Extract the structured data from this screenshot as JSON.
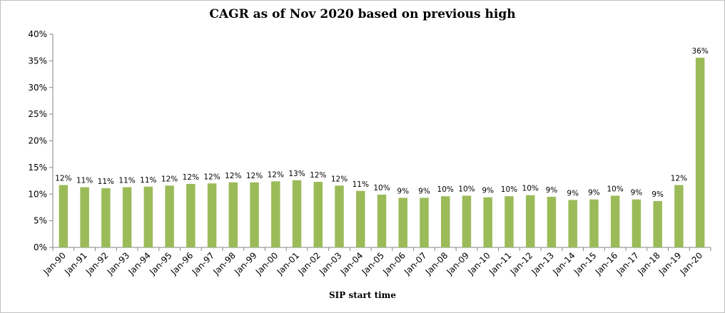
{
  "chart_data": {
    "type": "bar",
    "title": "CAGR as of Nov 2020 based on previous high",
    "xlabel": "SIP start time",
    "ylabel": "",
    "ylim": [
      0,
      40
    ],
    "y_ticks": [
      "0%",
      "5%",
      "10%",
      "15%",
      "20%",
      "25%",
      "30%",
      "35%",
      "40%"
    ],
    "categories": [
      "Jan-90",
      "Jan-91",
      "Jan-92",
      "Jan-93",
      "Jan-94",
      "Jan-95",
      "Jan-96",
      "Jan-97",
      "Jan-98",
      "Jan-99",
      "Jan-00",
      "Jan-01",
      "Jan-02",
      "Jan-03",
      "Jan-04",
      "Jan-05",
      "Jan-06",
      "Jan-07",
      "Jan-08",
      "Jan-09",
      "Jan-10",
      "Jan-11",
      "Jan-12",
      "Jan-13",
      "Jan-14",
      "Jan-15",
      "Jan-16",
      "Jan-17",
      "Jan-18",
      "Jan-19",
      "Jan-20"
    ],
    "values": [
      11.7,
      11.3,
      11.1,
      11.3,
      11.4,
      11.6,
      11.9,
      12.0,
      12.2,
      12.2,
      12.4,
      12.6,
      12.3,
      11.6,
      10.6,
      9.9,
      9.3,
      9.3,
      9.6,
      9.7,
      9.4,
      9.6,
      9.8,
      9.5,
      8.9,
      9.0,
      9.7,
      9.0,
      8.7,
      11.7,
      35.6
    ],
    "data_labels": [
      "12%",
      "11%",
      "11%",
      "11%",
      "11%",
      "12%",
      "12%",
      "12%",
      "12%",
      "12%",
      "12%",
      "13%",
      "12%",
      "12%",
      "11%",
      "10%",
      "9%",
      "9%",
      "10%",
      "10%",
      "9%",
      "10%",
      "10%",
      "9%",
      "9%",
      "9%",
      "10%",
      "9%",
      "9%",
      "12%",
      "36%"
    ],
    "bar_color": "#9bbb59",
    "axis_color": "#868686",
    "grid": false,
    "legend": "none"
  }
}
